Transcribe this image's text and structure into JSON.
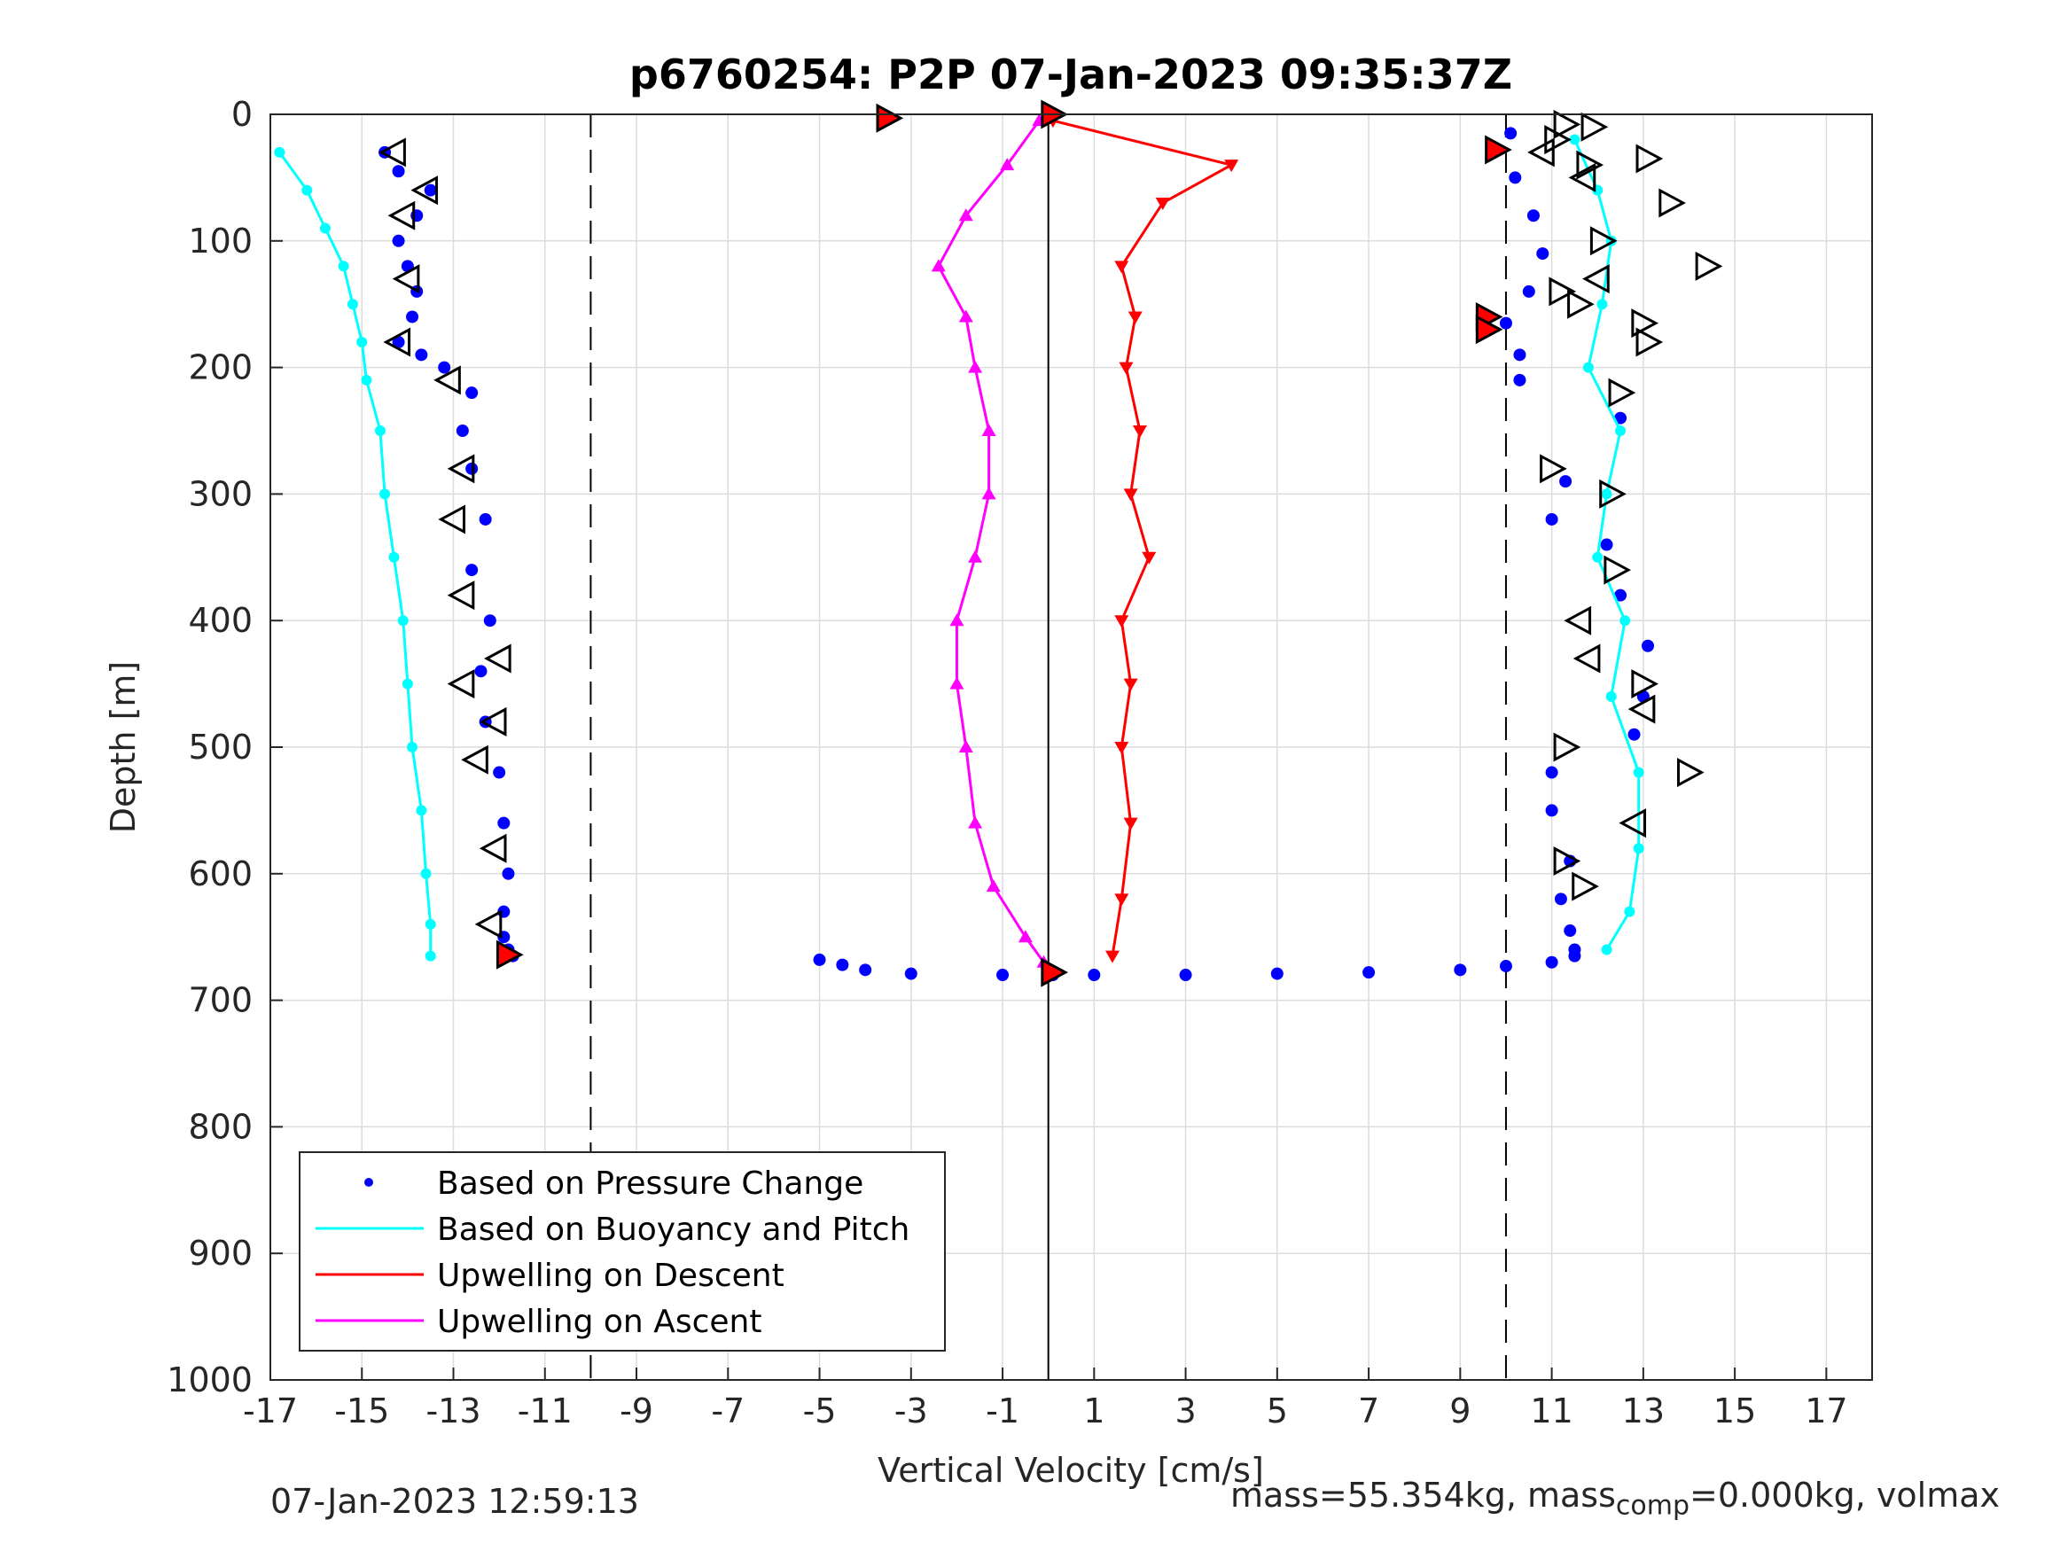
{
  "chart_data": {
    "type": "scatter",
    "title": "p6760254: P2P 07-Jan-2023 09:35:37Z",
    "xlabel": "Vertical Velocity [cm/s]",
    "ylabel": "Depth [m]",
    "xlim": [
      -17,
      18
    ],
    "ylim": [
      0,
      1000
    ],
    "y_reversed": true,
    "grid": true,
    "x_ticks": [
      -17,
      -15,
      -13,
      -11,
      -9,
      -7,
      -5,
      -3,
      -1,
      1,
      3,
      5,
      7,
      9,
      11,
      13,
      15,
      17
    ],
    "y_ticks": [
      0,
      100,
      200,
      300,
      400,
      500,
      600,
      700,
      800,
      900,
      1000
    ],
    "reference_lines": [
      {
        "x": -10,
        "style": "dashed"
      },
      {
        "x": 0,
        "style": "solid"
      },
      {
        "x": 10,
        "style": "dashed"
      }
    ],
    "legend": {
      "position": "bottom-left",
      "entries": [
        {
          "label": "Based on Pressure Change",
          "color": "#0000ff",
          "marker": "dot"
        },
        {
          "label": "Based on Buoyancy and Pitch",
          "color": "#00ffff",
          "marker": "line"
        },
        {
          "label": "Upwelling on Descent",
          "color": "#ff0000",
          "marker": "line"
        },
        {
          "label": "Upwelling on Ascent",
          "color": "#ff00ff",
          "marker": "line"
        }
      ]
    },
    "series": [
      {
        "name": "Based on Pressure Change",
        "color": "#0000ff",
        "segments": [
          {
            "x": [
              -14.5,
              -14.2,
              -13.5,
              -13.8,
              -14.2,
              -14.0,
              -13.8,
              -13.9,
              -14.2,
              -13.7,
              -13.2,
              -12.6,
              -12.8,
              -12.6,
              -12.3,
              -12.6,
              -12.2,
              -12.4,
              -12.3,
              -12.0,
              -11.9,
              -11.8,
              -11.9,
              -11.9,
              -11.8,
              -11.7
            ],
            "y": [
              30,
              45,
              60,
              80,
              100,
              120,
              140,
              160,
              180,
              190,
              200,
              220,
              250,
              280,
              320,
              360,
              400,
              440,
              480,
              520,
              560,
              600,
              630,
              650,
              660,
              665
            ]
          },
          {
            "x": [
              10.1,
              10.2,
              10.6,
              10.8,
              10.5,
              10.0,
              10.3,
              10.3,
              12.5,
              11.3,
              11.0,
              12.2,
              12.5,
              13.1,
              13.0,
              12.8,
              11.0,
              11.0,
              11.4,
              11.2,
              11.4,
              11.5
            ],
            "y": [
              15,
              50,
              80,
              110,
              140,
              165,
              190,
              210,
              240,
              290,
              320,
              340,
              380,
              420,
              460,
              490,
              520,
              550,
              590,
              620,
              645,
              660
            ]
          },
          {
            "x": [
              11.5,
              11.0,
              10.0,
              9.0,
              7.0,
              5.0,
              3.0,
              1.0,
              0.1,
              -1.0,
              -3.0,
              -4.0,
              -4.5,
              -5.0
            ],
            "y": [
              665,
              670,
              673,
              676,
              678,
              679,
              680,
              680,
              680,
              680,
              679,
              676,
              672,
              668
            ]
          }
        ]
      },
      {
        "name": "Based on Buoyancy and Pitch",
        "color": "#00ffff",
        "segments": [
          {
            "x": [
              -16.8,
              -16.2,
              -15.8,
              -15.4,
              -15.2,
              -15.0,
              -14.9,
              -14.6,
              -14.5,
              -14.3,
              -14.1,
              -14.0,
              -13.9,
              -13.7,
              -13.6,
              -13.5,
              -13.5
            ],
            "y": [
              30,
              60,
              90,
              120,
              150,
              180,
              210,
              250,
              300,
              350,
              400,
              450,
              500,
              550,
              600,
              640,
              665
            ]
          },
          {
            "x": [
              11.5,
              12.0,
              12.3,
              12.1,
              11.8,
              12.5,
              12.2,
              12.0,
              12.6,
              12.3,
              12.9,
              12.9,
              12.7,
              12.2
            ],
            "y": [
              20,
              60,
              100,
              150,
              200,
              250,
              300,
              350,
              400,
              460,
              520,
              580,
              630,
              660
            ]
          }
        ]
      },
      {
        "name": "Upwelling on Descent",
        "color": "#ff0000",
        "x": [
          0.1,
          4.0,
          2.5,
          1.6,
          1.9,
          1.7,
          2.0,
          1.8,
          2.2,
          1.6,
          1.8,
          1.6,
          1.8,
          1.6,
          1.4
        ],
        "y": [
          5,
          40,
          70,
          120,
          160,
          200,
          250,
          300,
          350,
          400,
          450,
          500,
          560,
          620,
          665
        ]
      },
      {
        "name": "Upwelling on Ascent",
        "color": "#ff00ff",
        "x": [
          -0.2,
          -0.9,
          -1.8,
          -2.4,
          -1.8,
          -1.6,
          -1.3,
          -1.3,
          -1.6,
          -2.0,
          -2.0,
          -1.8,
          -1.6,
          -1.2,
          -0.5,
          -0.1
        ],
        "y": [
          5,
          40,
          80,
          120,
          160,
          200,
          250,
          300,
          350,
          400,
          450,
          500,
          560,
          610,
          650,
          670
        ]
      }
    ],
    "markers": [
      {
        "kind": "triangle-left",
        "points": [
          [
            -14.3,
            30
          ],
          [
            -14.1,
            80
          ],
          [
            -13.6,
            60
          ],
          [
            -14.0,
            130
          ],
          [
            -14.2,
            180
          ],
          [
            -13.1,
            210
          ],
          [
            -12.8,
            280
          ],
          [
            -13.0,
            320
          ],
          [
            -12.8,
            380
          ],
          [
            -12.8,
            450
          ],
          [
            -12.5,
            510
          ],
          [
            -12.1,
            580
          ],
          [
            -12.2,
            640
          ],
          [
            -12.0,
            430
          ],
          [
            -12.1,
            480
          ]
        ]
      },
      {
        "kind": "triangle-right",
        "points": [
          [
            11.1,
            20
          ],
          [
            11.8,
            40
          ],
          [
            12.1,
            100
          ],
          [
            11.2,
            140
          ],
          [
            12.5,
            220
          ],
          [
            12.3,
            300
          ],
          [
            11.0,
            280
          ],
          [
            12.4,
            360
          ],
          [
            11.3,
            500
          ],
          [
            13.0,
            450
          ],
          [
            14.0,
            520
          ],
          [
            11.3,
            590
          ],
          [
            11.7,
            610
          ]
        ]
      },
      {
        "kind": "triangle-left",
        "points": [
          [
            10.8,
            30
          ],
          [
            11.7,
            50
          ],
          [
            12.0,
            130
          ],
          [
            11.6,
            400
          ],
          [
            11.8,
            430
          ],
          [
            12.8,
            560
          ],
          [
            13.0,
            470
          ]
        ]
      },
      {
        "kind": "triangle-right",
        "points": [
          [
            11.3,
            8
          ],
          [
            11.9,
            10
          ],
          [
            13.1,
            35
          ],
          [
            13.6,
            70
          ],
          [
            14.4,
            120
          ],
          [
            13.1,
            180
          ],
          [
            13.0,
            165
          ],
          [
            11.6,
            150
          ]
        ]
      }
    ],
    "highlight_markers": [
      {
        "color": "#ff0000",
        "points": [
          [
            -3.5,
            3
          ],
          [
            0.1,
            0
          ],
          [
            9.8,
            28
          ],
          [
            9.6,
            160
          ],
          [
            9.6,
            170
          ],
          [
            0.1,
            678
          ],
          [
            -11.8,
            664
          ]
        ]
      }
    ]
  },
  "footer": {
    "timestamp": "07-Jan-2023 12:59:13",
    "info_prefix": "mass=55.354kg, mass",
    "info_sub": "comp",
    "info_suffix": "=0.000kg, volmax"
  }
}
